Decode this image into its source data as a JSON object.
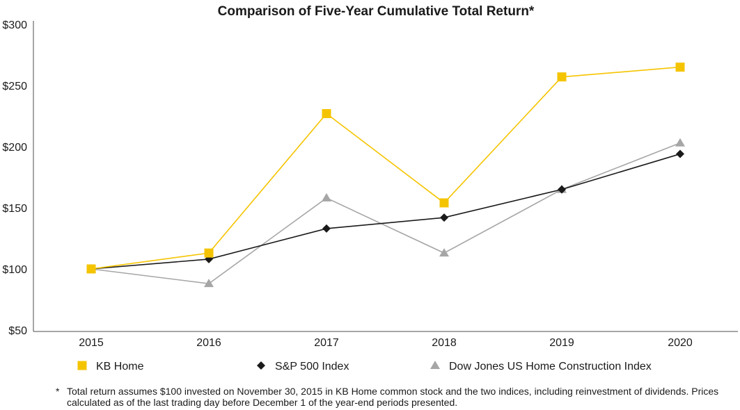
{
  "chart_data": {
    "type": "line",
    "title": "Comparison of Five-Year Cumulative Total Return*",
    "categories": [
      "2015",
      "2016",
      "2017",
      "2018",
      "2019",
      "2020"
    ],
    "ylim": [
      50,
      300
    ],
    "yticks": [
      "$50",
      "$100",
      "$150",
      "$200",
      "$250",
      "$300"
    ],
    "ytick_values": [
      50,
      100,
      150,
      200,
      250,
      300
    ],
    "grid": false,
    "legend_position": "bottom",
    "series": [
      {
        "name": "KB Home",
        "marker": "square",
        "color": "#F5C400",
        "values": [
          100,
          113,
          227,
          154,
          257,
          265
        ]
      },
      {
        "name": "S&P 500 Index",
        "marker": "diamond",
        "color": "#1a1a1a",
        "values": [
          100,
          108,
          133,
          142,
          165,
          194
        ]
      },
      {
        "name": "Dow Jones US Home Construction Index",
        "marker": "triangle",
        "color": "#A6A6A6",
        "values": [
          100,
          88,
          158,
          113,
          165,
          203
        ]
      }
    ],
    "footnote_mark": "*",
    "footnote": "Total return assumes $100 invested on November 30, 2015 in KB Home common stock and the two indices, including reinvestment of dividends. Prices calculated as of the last trading day before December 1 of the year-end periods presented."
  }
}
